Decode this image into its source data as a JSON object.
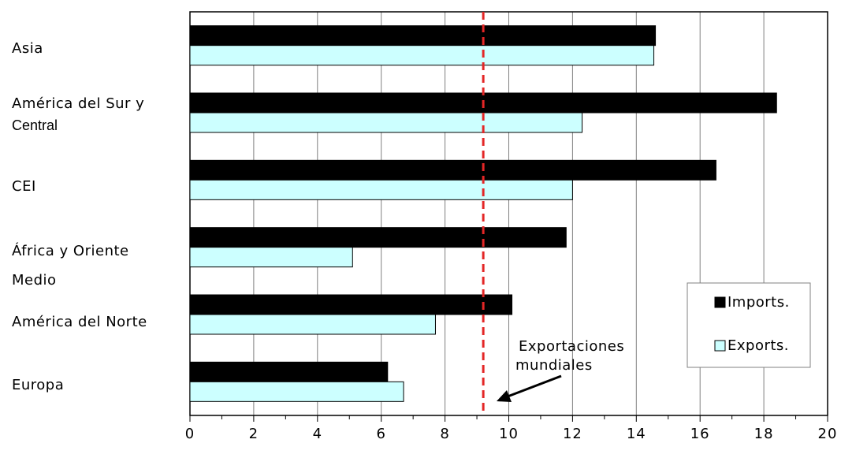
{
  "chart_data": {
    "type": "bar",
    "orientation": "horizontal",
    "title": "",
    "xlabel": "",
    "ylabel": "",
    "xlim": [
      0,
      20
    ],
    "xticks": [
      0,
      2,
      4,
      6,
      8,
      10,
      12,
      14,
      16,
      18,
      20
    ],
    "grid": "vertical",
    "legend_position": "right",
    "categories": [
      [
        "Asia"
      ],
      [
        "América del Sur y",
        "Central"
      ],
      [
        "CEI"
      ],
      [
        "África y Oriente",
        "Medio"
      ],
      [
        "América del Norte"
      ],
      [
        "Europa"
      ]
    ],
    "series": [
      {
        "name": "Imports.",
        "color": "#000000",
        "values": [
          14.6,
          18.4,
          16.5,
          11.8,
          10.1,
          6.2
        ]
      },
      {
        "name": "Exports.",
        "color": "#ccffff",
        "values": [
          14.55,
          12.3,
          12.0,
          5.1,
          7.7,
          6.7
        ]
      }
    ],
    "reference_line": {
      "value": 9.2,
      "color": "#e32626",
      "style": "dashed"
    },
    "annotation": {
      "lines": [
        "Exportaciones",
        "mundiales"
      ]
    }
  }
}
